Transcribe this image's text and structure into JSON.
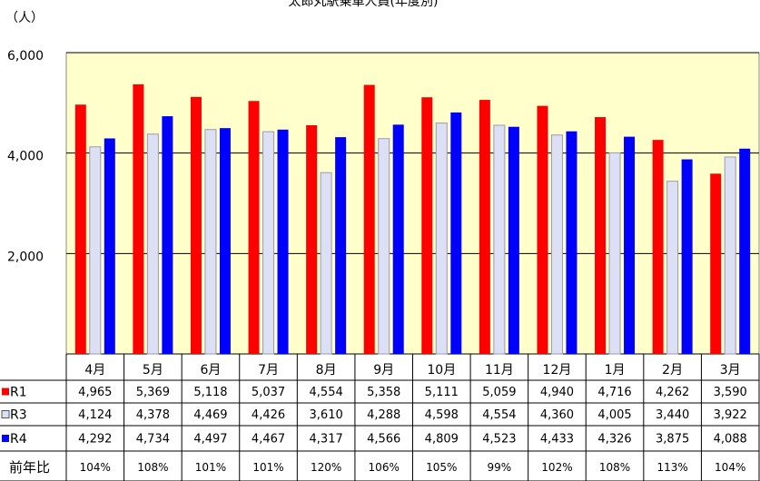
{
  "chart_data": {
    "type": "bar",
    "title": "太郎丸駅乗車人員(年度別)",
    "y_unit": "（人）",
    "categories": [
      "4月",
      "5月",
      "6月",
      "7月",
      "8月",
      "9月",
      "10月",
      "11月",
      "12月",
      "1月",
      "2月",
      "3月"
    ],
    "series": [
      {
        "name": "R1",
        "color": "#ff0000",
        "values": [
          4965,
          5369,
          5118,
          5037,
          4554,
          5358,
          5111,
          5059,
          4940,
          4716,
          4262,
          3590
        ],
        "value_labels": [
          "4,965",
          "5,369",
          "5,118",
          "5,037",
          "4,554",
          "5,358",
          "5,111",
          "5,059",
          "4,940",
          "4,716",
          "4,262",
          "3,590"
        ]
      },
      {
        "name": "R3",
        "color": "#dde0f4",
        "values": [
          4124,
          4378,
          4469,
          4426,
          3610,
          4288,
          4598,
          4554,
          4360,
          4005,
          3440,
          3922
        ],
        "value_labels": [
          "4,124",
          "4,378",
          "4,469",
          "4,426",
          "3,610",
          "4,288",
          "4,598",
          "4,554",
          "4,360",
          "4,005",
          "3,440",
          "3,922"
        ]
      },
      {
        "name": "R4",
        "color": "#0000ff",
        "values": [
          4292,
          4734,
          4497,
          4467,
          4317,
          4566,
          4809,
          4523,
          4433,
          4326,
          3875,
          4088
        ],
        "value_labels": [
          "4,292",
          "4,734",
          "4,497",
          "4,467",
          "4,317",
          "4,566",
          "4,809",
          "4,523",
          "4,433",
          "4,326",
          "3,875",
          "4,088"
        ]
      }
    ],
    "yoy": {
      "name": "前年比",
      "values": [
        104,
        108,
        101,
        101,
        120,
        106,
        105,
        99,
        102,
        108,
        113,
        104
      ],
      "value_labels": [
        "104%",
        "108%",
        "101%",
        "101%",
        "120%",
        "106%",
        "105%",
        "99%",
        "102%",
        "108%",
        "113%",
        "104%"
      ]
    },
    "ylim": [
      0,
      6000
    ],
    "yticks": [
      {
        "value": 2000,
        "label": "2,000"
      },
      {
        "value": 4000,
        "label": "4,000"
      },
      {
        "value": 6000,
        "label": "6,000"
      }
    ],
    "grid": true,
    "plot_background": "#ffffcc"
  }
}
